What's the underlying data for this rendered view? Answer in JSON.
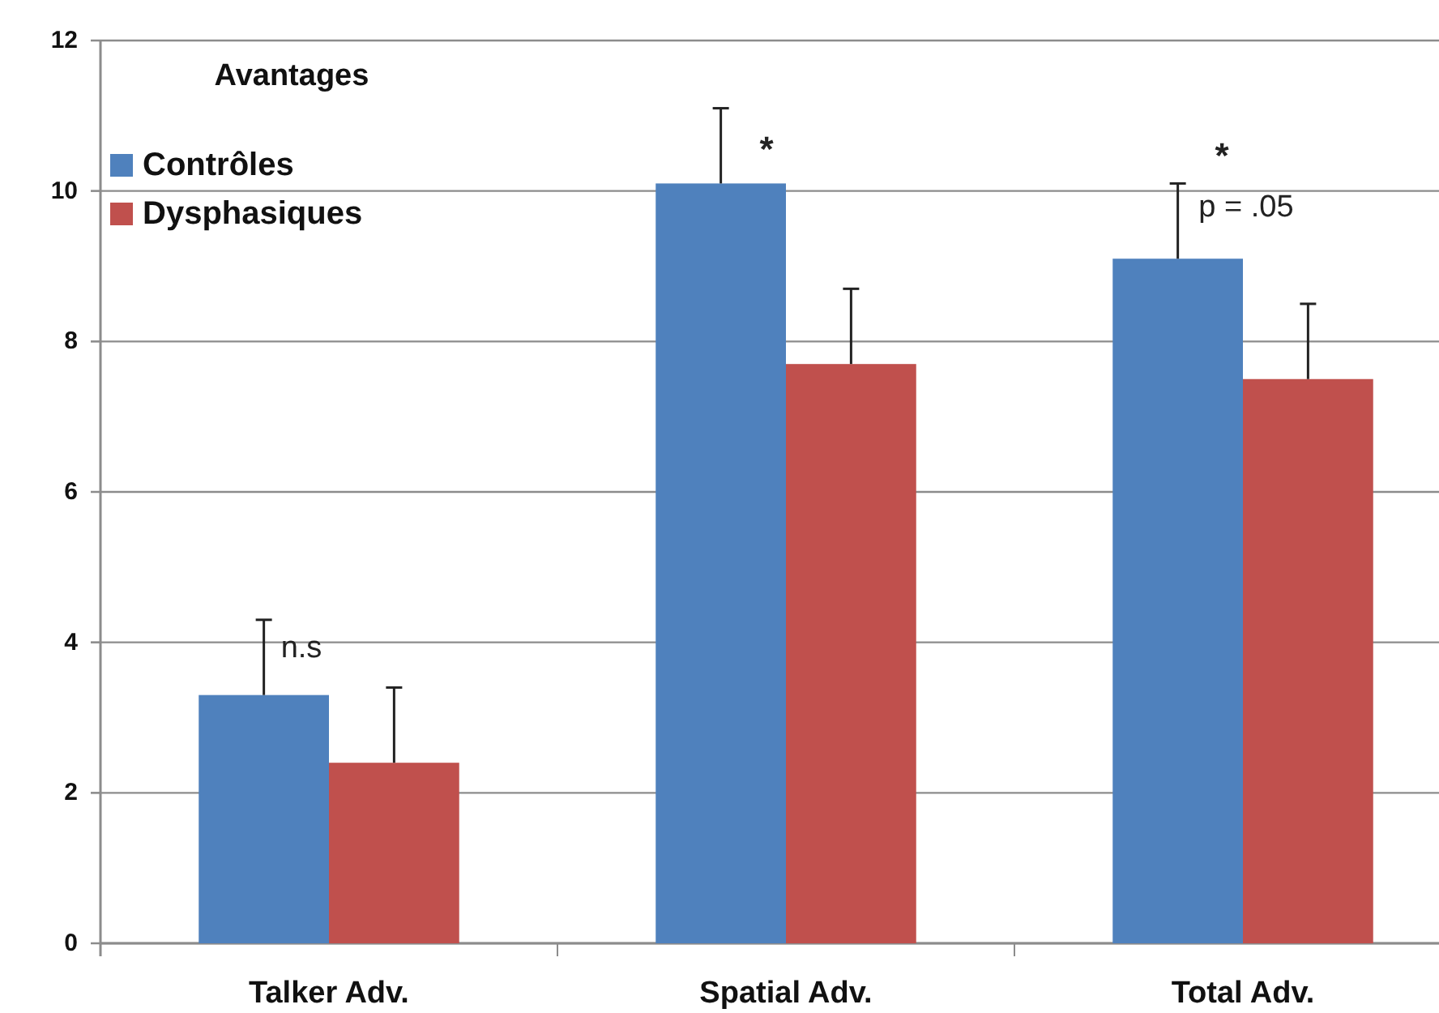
{
  "chart_data": {
    "type": "bar",
    "categories": [
      "Talker Adv.",
      "Spatial Adv.",
      "Total Adv."
    ],
    "series": [
      {
        "name": "Contrôles",
        "color": "#4f81bd",
        "values": [
          3.3,
          10.1,
          9.1
        ],
        "errors": [
          [
            3.3,
            4.3
          ],
          [
            10.1,
            11.1
          ],
          [
            9.1,
            10.1
          ]
        ]
      },
      {
        "name": "Dysphasiques",
        "color": "#c0504d",
        "values": [
          2.4,
          7.7,
          7.5
        ],
        "errors": [
          [
            2.4,
            3.4
          ],
          [
            7.7,
            8.7
          ],
          [
            7.5,
            8.5
          ]
        ]
      }
    ],
    "ylim": [
      0,
      12
    ],
    "yticks": [
      0,
      2,
      4,
      6,
      8,
      10,
      12
    ],
    "grid": "y",
    "legend": "top left",
    "legend_title": "Avantages",
    "annotations": [
      "n.s",
      "*",
      "*",
      "p = .05"
    ]
  }
}
